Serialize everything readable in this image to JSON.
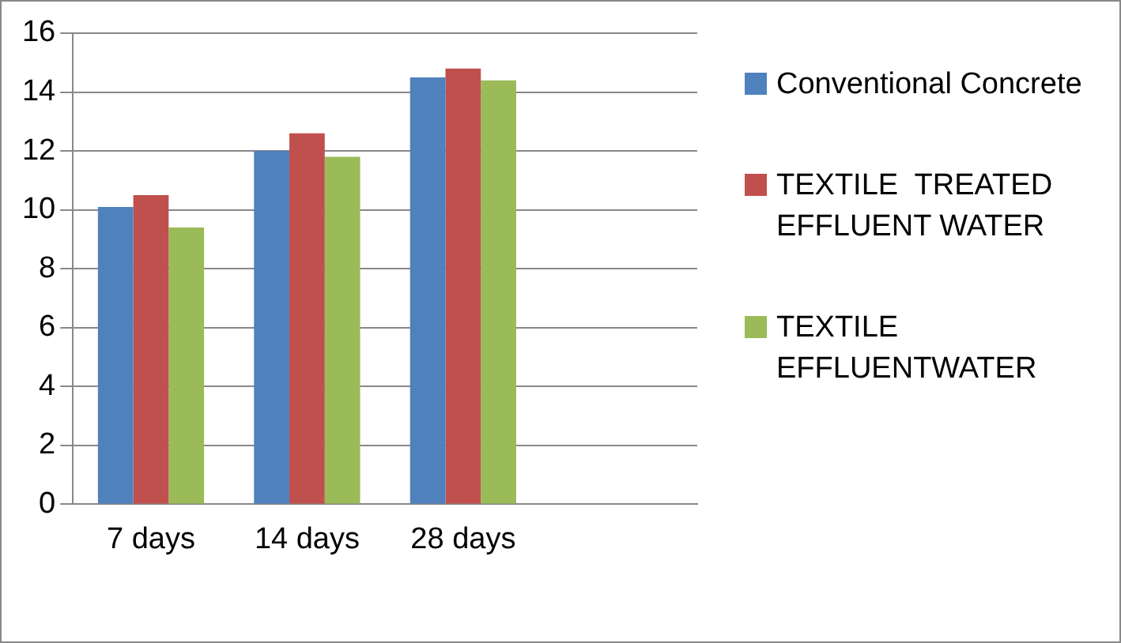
{
  "chart_data": {
    "type": "bar",
    "categories": [
      "7 days",
      "14 days",
      "28 days",
      null
    ],
    "series": [
      {
        "name": "Conventional Concrete",
        "color": "#4f81bd",
        "values": [
          10.1,
          12.0,
          14.5,
          null
        ]
      },
      {
        "name": "TEXTILE  TREATED EFFLUENT WATER",
        "color": "#c0504d",
        "values": [
          10.5,
          12.6,
          14.8,
          null
        ]
      },
      {
        "name": "TEXTILE EFFLUENTWATER",
        "color": "#9bbb59",
        "values": [
          9.4,
          11.8,
          14.4,
          null
        ]
      }
    ],
    "ylim": [
      0,
      16
    ],
    "yticks": [
      0,
      2,
      4,
      6,
      8,
      10,
      12,
      14,
      16
    ],
    "grid": "y",
    "legend": "right"
  }
}
